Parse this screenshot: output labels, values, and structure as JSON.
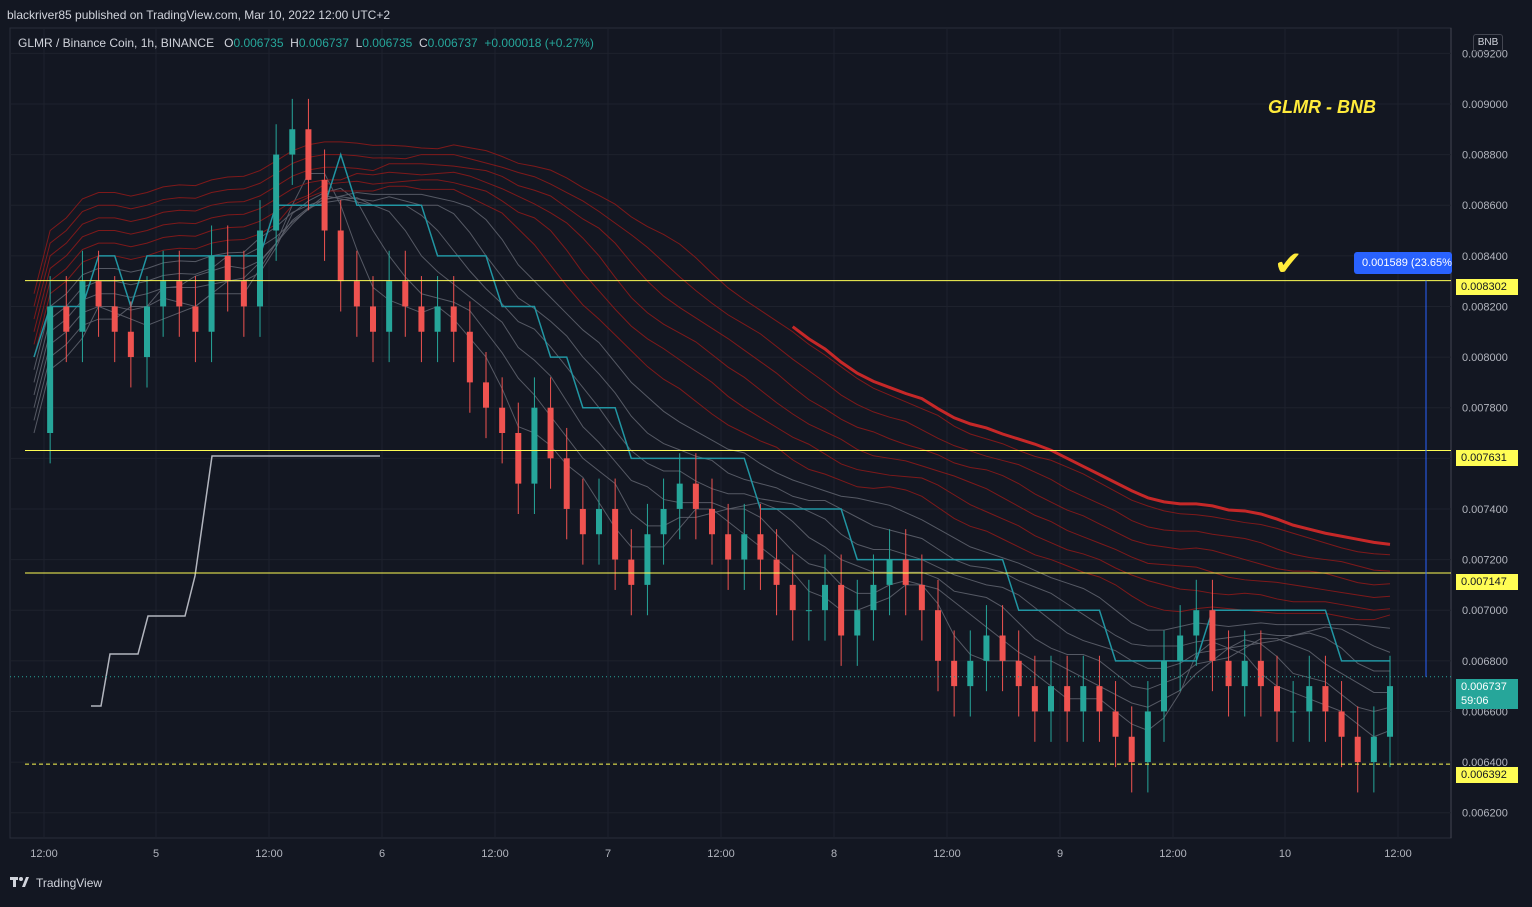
{
  "header": {
    "published": "blackriver85 published on TradingView.com, Mar 10, 2022 12:00 UTC+2"
  },
  "legend": {
    "symbol": "GLMR / Binance Coin, 1h, BINANCE",
    "o_label": "O",
    "o_val": "0.006735",
    "h_label": "H",
    "h_val": "0.006737",
    "l_label": "L",
    "l_val": "0.006735",
    "c_label": "C",
    "c_val": "0.006737",
    "change": "+0.000018 (+0.27%)"
  },
  "annotation": {
    "title": "GLMR - BNB",
    "checkmark": "✔",
    "measure": "0.001589 (23.65%"
  },
  "footer": {
    "brand": "TradingView"
  },
  "colors": {
    "background": "#131722",
    "up": "#26a69a",
    "down": "#ef5350",
    "level": "#fffd54",
    "accent": "#2962ff"
  },
  "chart_data": {
    "type": "candlestick",
    "currency": "BNB",
    "ylim": [
      0.0061,
      0.0093
    ],
    "y_ticks": [
      "0.009200",
      "0.009000",
      "0.008800",
      "0.008600",
      "0.008400",
      "0.008200",
      "0.008000",
      "0.007800",
      "0.007600",
      "0.007400",
      "0.007200",
      "0.007000",
      "0.006800",
      "0.006600",
      "0.006400",
      "0.006200"
    ],
    "x_ticks": [
      "12:00",
      "5",
      "12:00",
      "6",
      "12:00",
      "7",
      "12:00",
      "8",
      "12:00",
      "9",
      "12:00",
      "10",
      "12:00"
    ],
    "horizontal_levels": [
      {
        "price": 0.008302,
        "label": "0.008302",
        "style": "solid"
      },
      {
        "price": 0.007631,
        "label": "0.007631",
        "style": "solid"
      },
      {
        "price": 0.007147,
        "label": "0.007147",
        "style": "solid"
      },
      {
        "price": 0.006392,
        "label": "0.006392",
        "style": "dashed"
      }
    ],
    "last_price": {
      "price": 0.006737,
      "label": "0.006737",
      "countdown": "59:06"
    },
    "close_path": [
      0.0077,
      0.0082,
      0.0081,
      0.0083,
      0.0082,
      0.0081,
      0.008,
      0.0082,
      0.0083,
      0.0082,
      0.0081,
      0.0084,
      0.0083,
      0.0082,
      0.0085,
      0.0088,
      0.0089,
      0.0087,
      0.0085,
      0.0083,
      0.0082,
      0.0081,
      0.0083,
      0.0082,
      0.0081,
      0.0082,
      0.0081,
      0.0079,
      0.0078,
      0.0077,
      0.0075,
      0.0078,
      0.0076,
      0.0074,
      0.0073,
      0.0074,
      0.0072,
      0.0071,
      0.0073,
      0.0074,
      0.0075,
      0.0074,
      0.0073,
      0.0072,
      0.0073,
      0.0072,
      0.0071,
      0.007,
      0.007,
      0.0071,
      0.0069,
      0.007,
      0.0071,
      0.0072,
      0.0071,
      0.007,
      0.0068,
      0.0067,
      0.0068,
      0.0069,
      0.0068,
      0.0067,
      0.0066,
      0.0067,
      0.0066,
      0.0067,
      0.0066,
      0.0065,
      0.0064,
      0.0066,
      0.0068,
      0.0069,
      0.007,
      0.0068,
      0.0067,
      0.0068,
      0.0067,
      0.0066,
      0.0066,
      0.0067,
      0.0066,
      0.0065,
      0.0064,
      0.0065,
      0.0067
    ]
  }
}
